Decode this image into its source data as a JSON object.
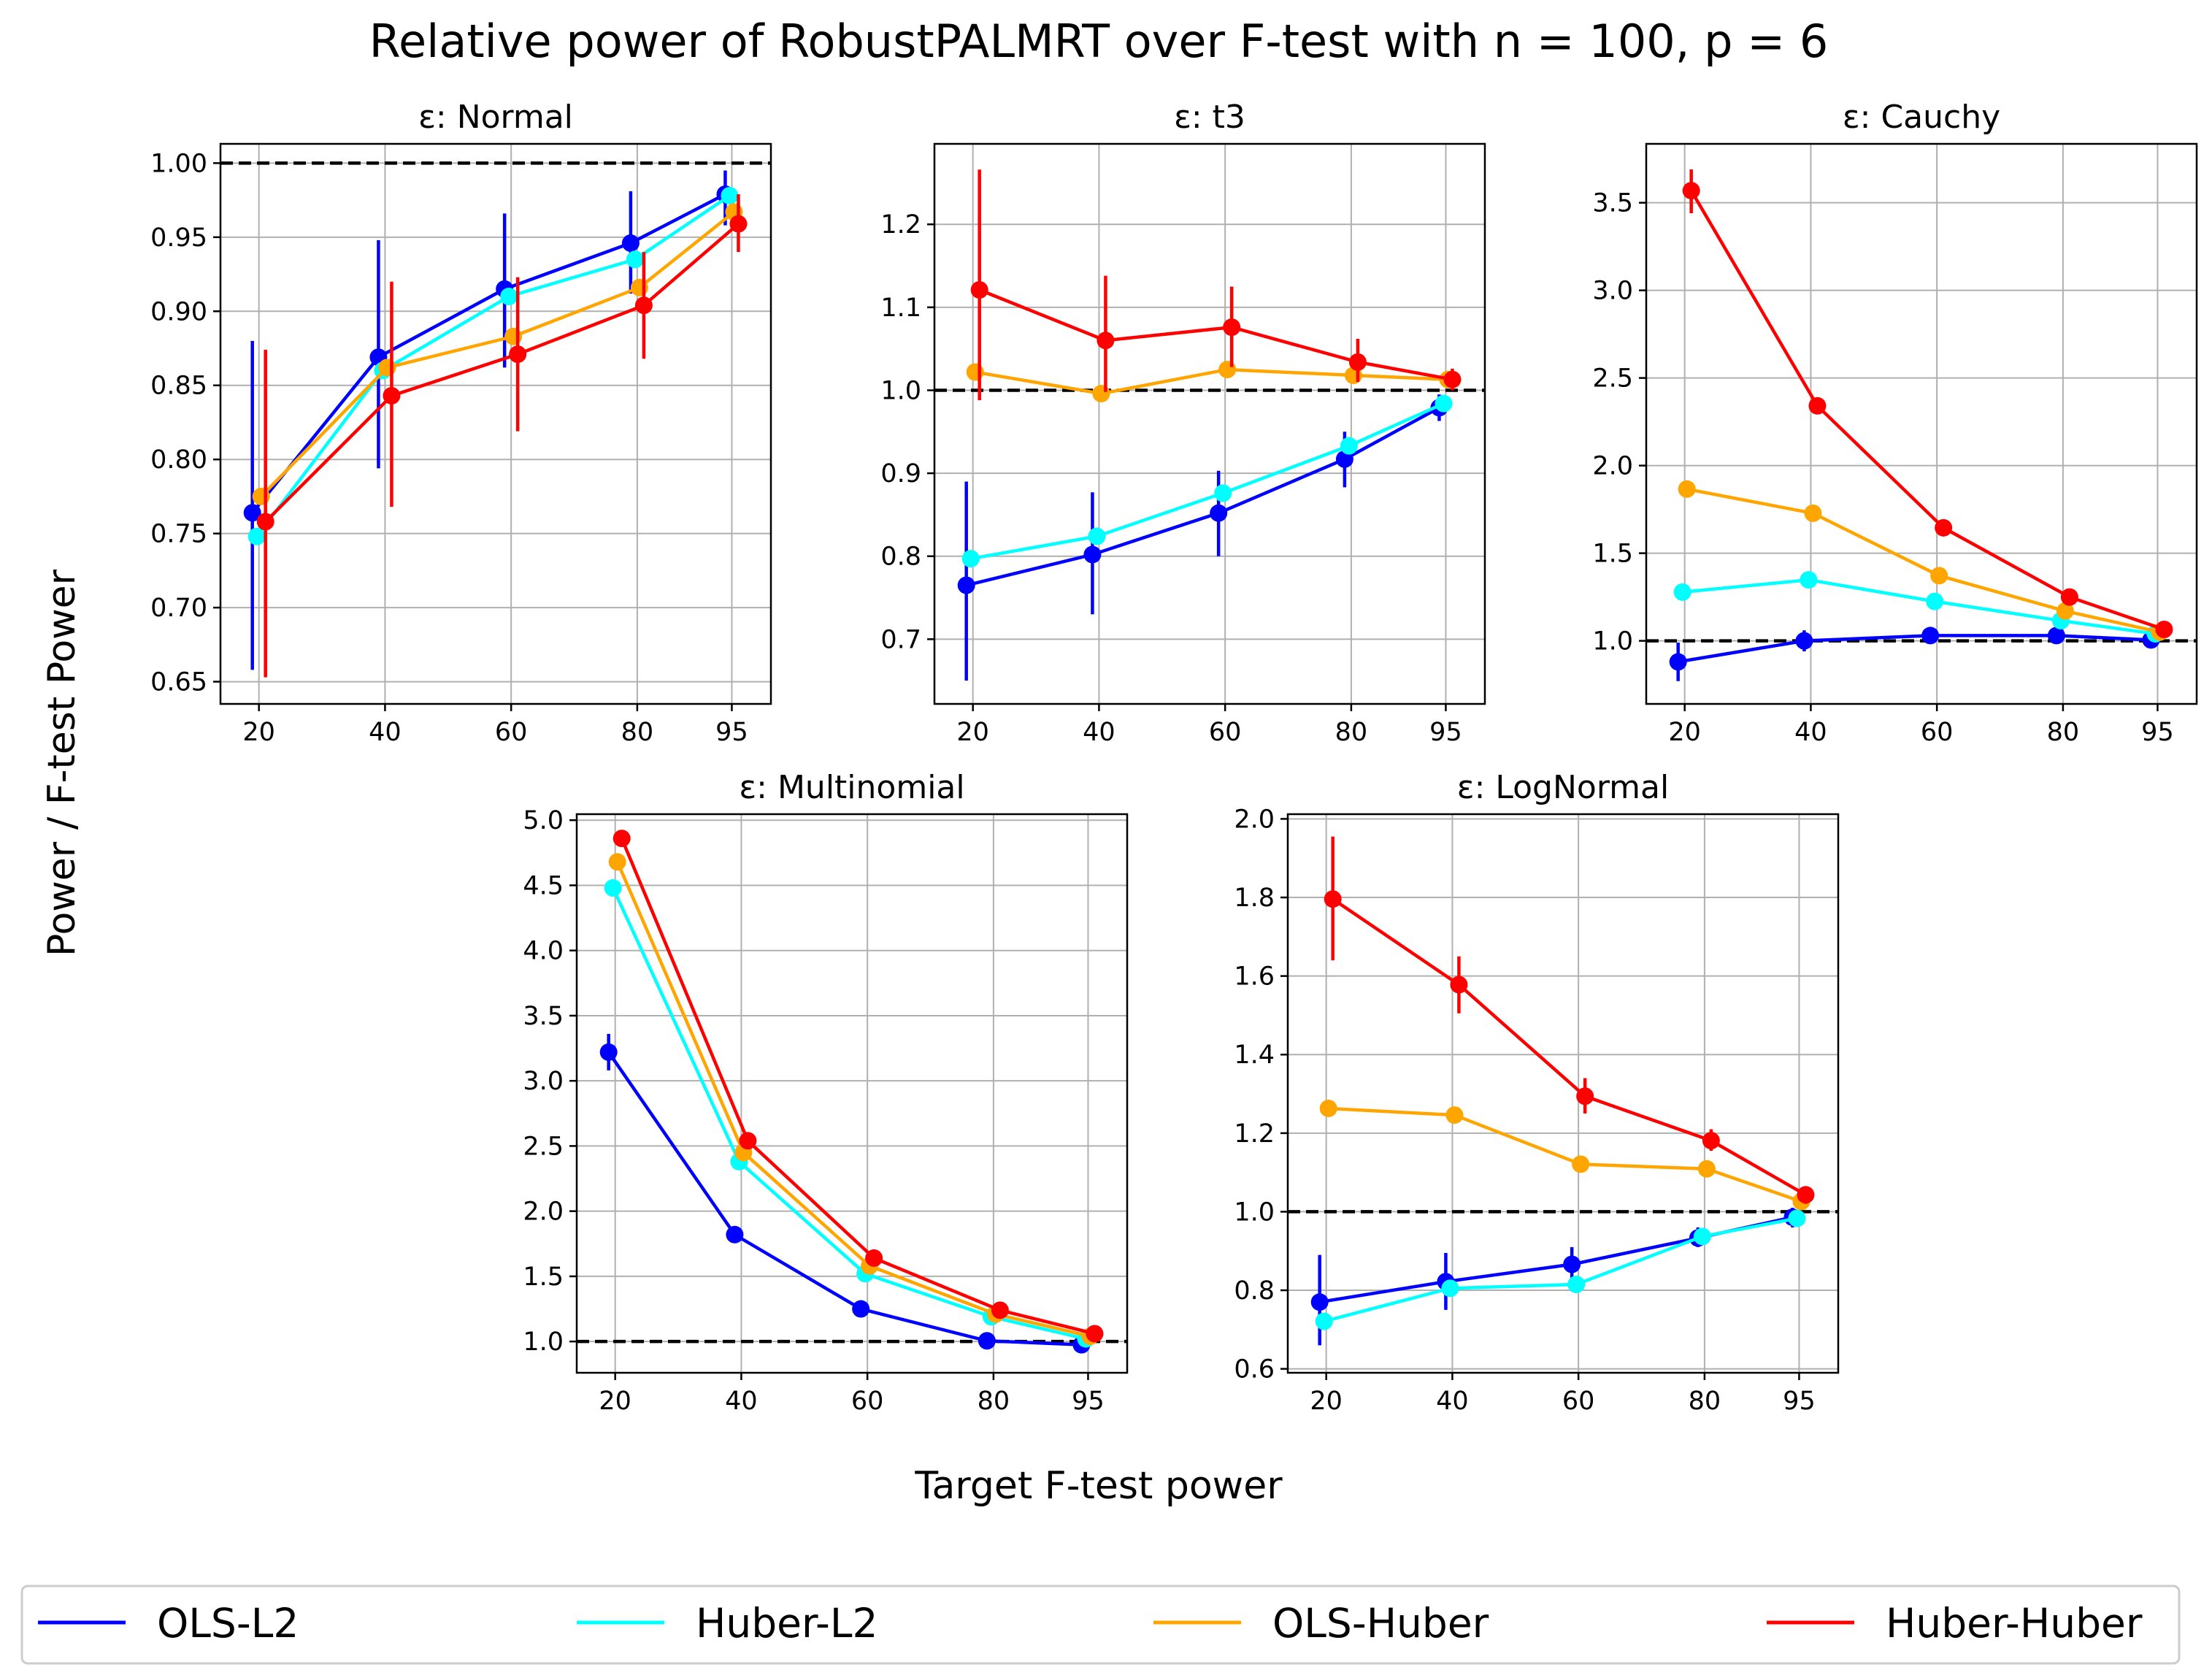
{
  "figure": {
    "title": "Relative power of RobustPALMRT over F-test with n = 100, p = 6",
    "ylabel": "Power / F-test Power",
    "xlabel": "Target F-test power"
  },
  "legend": {
    "placement": "bottom",
    "items": [
      {
        "label": "OLS-L2",
        "color": "#0000ff"
      },
      {
        "label": "Huber-L2",
        "color": "#00ffff"
      },
      {
        "label": "OLS-Huber",
        "color": "#ffa500"
      },
      {
        "label": "Huber-Huber",
        "color": "#ff0000"
      }
    ]
  },
  "chart_data": [
    {
      "type": "line",
      "title": "ε: Normal",
      "x": [
        20,
        40,
        60,
        80,
        95
      ],
      "xticks": [
        "20",
        "40",
        "60",
        "80",
        "95"
      ],
      "ylim": [
        0.635,
        1.013
      ],
      "yticks": [
        0.65,
        0.7,
        0.75,
        0.8,
        0.85,
        0.9,
        0.95,
        1.0
      ],
      "ytick_labels": [
        "0.65",
        "0.70",
        "0.75",
        "0.80",
        "0.85",
        "0.90",
        "0.95",
        "1.00"
      ],
      "reference_line": 1.0,
      "grid": true,
      "series": [
        {
          "name": "OLS-L2",
          "color": "#0000ff",
          "values": [
            0.764,
            0.869,
            0.915,
            0.946,
            0.979
          ],
          "err": [
            [
              0.658,
              0.88
            ],
            [
              0.794,
              0.948
            ],
            [
              0.862,
              0.966
            ],
            [
              0.912,
              0.981
            ],
            [
              0.958,
              0.995
            ]
          ]
        },
        {
          "name": "Huber-L2",
          "color": "#00ffff",
          "values": [
            0.748,
            0.86,
            0.91,
            0.935,
            0.978
          ]
        },
        {
          "name": "OLS-Huber",
          "color": "#ffa500",
          "values": [
            0.775,
            0.862,
            0.883,
            0.916,
            0.967
          ]
        },
        {
          "name": "Huber-Huber",
          "color": "#ff0000",
          "values": [
            0.758,
            0.843,
            0.871,
            0.904,
            0.959
          ],
          "err": [
            [
              0.653,
              0.874
            ],
            [
              0.768,
              0.92
            ],
            [
              0.819,
              0.923
            ],
            [
              0.868,
              0.94
            ],
            [
              0.94,
              0.979
            ]
          ]
        }
      ]
    },
    {
      "type": "line",
      "title": "ε: t3",
      "x": [
        20,
        40,
        60,
        80,
        95
      ],
      "xticks": [
        "20",
        "40",
        "60",
        "80",
        "95"
      ],
      "ylim": [
        0.622,
        1.297
      ],
      "yticks": [
        0.7,
        0.8,
        0.9,
        1.0,
        1.1,
        1.2
      ],
      "ytick_labels": [
        "0.7",
        "0.8",
        "0.9",
        "1.0",
        "1.1",
        "1.2"
      ],
      "reference_line": 1.0,
      "grid": true,
      "series": [
        {
          "name": "OLS-L2",
          "color": "#0000ff",
          "values": [
            0.765,
            0.802,
            0.852,
            0.917,
            0.979
          ],
          "err": [
            [
              0.65,
              0.89
            ],
            [
              0.73,
              0.877
            ],
            [
              0.8,
              0.903
            ],
            [
              0.883,
              0.95
            ],
            [
              0.963,
              0.995
            ]
          ]
        },
        {
          "name": "Huber-L2",
          "color": "#00ffff",
          "values": [
            0.797,
            0.824,
            0.876,
            0.933,
            0.984
          ]
        },
        {
          "name": "OLS-Huber",
          "color": "#ffa500",
          "values": [
            1.022,
            0.996,
            1.025,
            1.018,
            1.013
          ]
        },
        {
          "name": "Huber-Huber",
          "color": "#ff0000",
          "values": [
            1.121,
            1.06,
            1.076,
            1.034,
            1.013
          ],
          "err": [
            [
              0.988,
              1.266
            ],
            [
              0.998,
              1.138
            ],
            [
              1.028,
              1.125
            ],
            [
              1.01,
              1.062
            ],
            [
              1.0,
              1.026
            ]
          ]
        }
      ]
    },
    {
      "type": "line",
      "title": "ε: Cauchy",
      "x": [
        20,
        40,
        60,
        80,
        95
      ],
      "xticks": [
        "20",
        "40",
        "60",
        "80",
        "95"
      ],
      "ylim": [
        0.64,
        3.836
      ],
      "yticks": [
        1.0,
        1.5,
        2.0,
        2.5,
        3.0,
        3.5
      ],
      "ytick_labels": [
        "1.0",
        "1.5",
        "2.0",
        "2.5",
        "3.0",
        "3.5"
      ],
      "reference_line": 1.0,
      "grid": true,
      "series": [
        {
          "name": "OLS-L2",
          "color": "#0000ff",
          "values": [
            0.88,
            1.0,
            1.03,
            1.03,
            1.005
          ],
          "err": [
            [
              0.77,
              0.99
            ],
            [
              0.94,
              1.06
            ],
            [
              0.99,
              1.07
            ],
            [
              0.99,
              1.07
            ],
            [
              0.97,
              1.04
            ]
          ]
        },
        {
          "name": "Huber-L2",
          "color": "#00ffff",
          "values": [
            1.278,
            1.348,
            1.225,
            1.115,
            1.04
          ]
        },
        {
          "name": "OLS-Huber",
          "color": "#ffa500",
          "values": [
            1.866,
            1.728,
            1.372,
            1.17,
            1.05
          ]
        },
        {
          "name": "Huber-Huber",
          "color": "#ff0000",
          "values": [
            3.569,
            2.341,
            1.645,
            1.25,
            1.065
          ],
          "err": [
            [
              3.44,
              3.69
            ]
          ]
        }
      ]
    },
    {
      "type": "line",
      "title": "ε: Multinomial",
      "x": [
        20,
        40,
        60,
        80,
        95
      ],
      "xticks": [
        "20",
        "40",
        "60",
        "80",
        "95"
      ],
      "ylim": [
        0.76,
        5.046
      ],
      "yticks": [
        1.0,
        1.5,
        2.0,
        2.5,
        3.0,
        3.5,
        4.0,
        4.5,
        5.0
      ],
      "ytick_labels": [
        "1.0",
        "1.5",
        "2.0",
        "2.5",
        "3.0",
        "3.5",
        "4.0",
        "4.5",
        "5.0"
      ],
      "reference_line": 1.0,
      "grid": true,
      "series": [
        {
          "name": "OLS-L2",
          "color": "#0000ff",
          "values": [
            3.22,
            1.82,
            1.25,
            1.005,
            0.975
          ],
          "err": [
            [
              3.08,
              3.36
            ]
          ]
        },
        {
          "name": "Huber-L2",
          "color": "#00ffff",
          "values": [
            4.48,
            2.38,
            1.52,
            1.19,
            1.02
          ]
        },
        {
          "name": "OLS-Huber",
          "color": "#ffa500",
          "values": [
            4.68,
            2.45,
            1.58,
            1.21,
            1.04
          ]
        },
        {
          "name": "Huber-Huber",
          "color": "#ff0000",
          "values": [
            4.86,
            2.54,
            1.64,
            1.24,
            1.06
          ]
        }
      ]
    },
    {
      "type": "line",
      "title": "ε: LogNormal",
      "x": [
        20,
        40,
        60,
        80,
        95
      ],
      "xticks": [
        "20",
        "40",
        "60",
        "80",
        "95"
      ],
      "ylim": [
        0.59,
        2.012
      ],
      "yticks": [
        0.6,
        0.8,
        1.0,
        1.2,
        1.4,
        1.6,
        1.8,
        2.0
      ],
      "ytick_labels": [
        "0.6",
        "0.8",
        "1.0",
        "1.2",
        "1.4",
        "1.6",
        "1.8",
        "2.0"
      ],
      "reference_line": 1.0,
      "grid": true,
      "series": [
        {
          "name": "OLS-L2",
          "color": "#0000ff",
          "values": [
            0.77,
            0.822,
            0.866,
            0.933,
            0.986
          ],
          "err": [
            [
              0.66,
              0.89
            ],
            [
              0.75,
              0.895
            ],
            [
              0.82,
              0.91
            ],
            [
              0.91,
              0.96
            ],
            [
              0.96,
              1.01
            ]
          ]
        },
        {
          "name": "Huber-L2",
          "color": "#00ffff",
          "values": [
            0.721,
            0.805,
            0.815,
            0.937,
            0.983
          ]
        },
        {
          "name": "OLS-Huber",
          "color": "#ffa500",
          "values": [
            1.263,
            1.246,
            1.121,
            1.109,
            1.026
          ]
        },
        {
          "name": "Huber-Huber",
          "color": "#ff0000",
          "values": [
            1.796,
            1.578,
            1.294,
            1.181,
            1.043
          ],
          "err": [
            [
              1.64,
              1.955
            ],
            [
              1.505,
              1.65
            ],
            [
              1.25,
              1.34
            ],
            [
              1.155,
              1.21
            ],
            [
              1.02,
              1.065
            ]
          ]
        }
      ]
    }
  ]
}
